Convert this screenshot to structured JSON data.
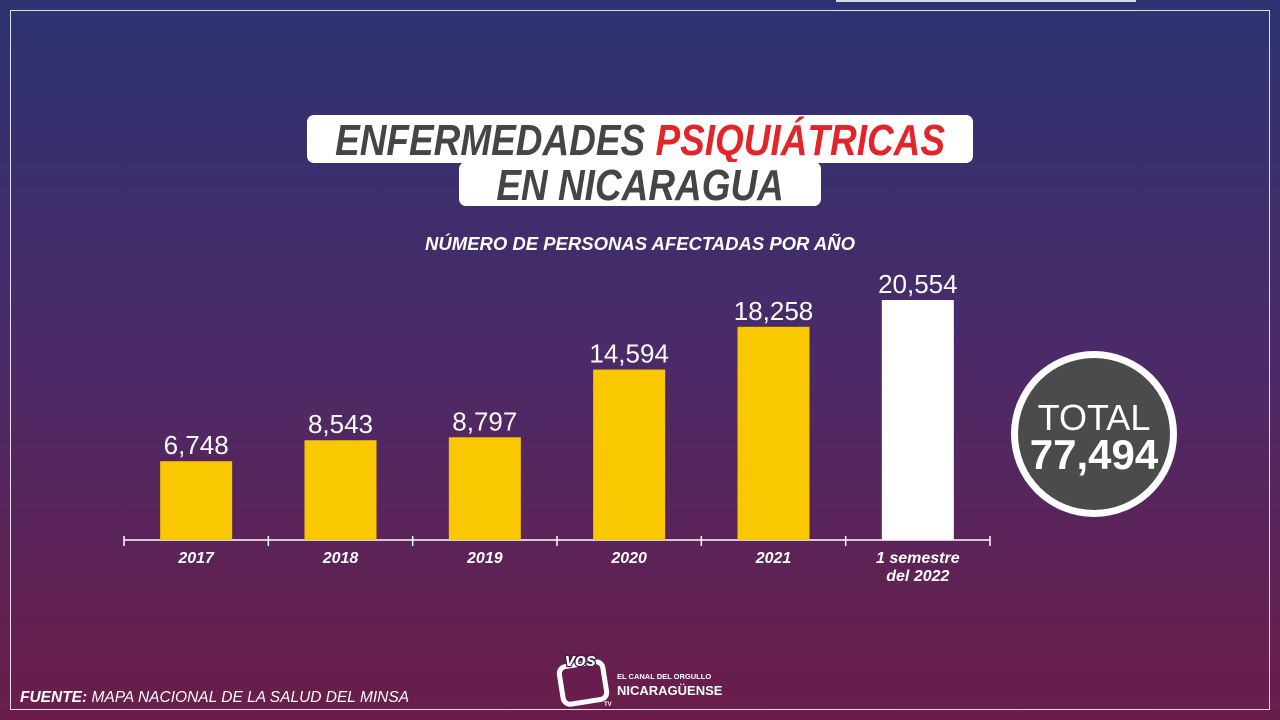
{
  "colors": {
    "background_top": "#2d3371",
    "background_middle": "#4b2a68",
    "background_bottom": "#6b1d49",
    "title_dark": "#454545",
    "title_red": "#e2252b",
    "total_circle": "#4b4b4b",
    "text": "#ffffff"
  },
  "chart_data": {
    "type": "bar",
    "title": {
      "line1_dark": "ENFERMEDADES",
      "line1_red": "PSIQUIÁTRICAS",
      "line2": "EN NICARAGUA"
    },
    "subtitle": "NÚMERO DE PERSONAS AFECTADAS POR AÑO",
    "categories": [
      "2017",
      "2018",
      "2019",
      "2020",
      "2021",
      "1 semestre del 2022"
    ],
    "values": [
      6748,
      8543,
      8797,
      14594,
      18258,
      20554
    ],
    "bar_colors": [
      "#f9c800",
      "#f9c800",
      "#f9c800",
      "#f9c800",
      "#f9c800",
      "#ffffff"
    ],
    "xlabel": "",
    "ylabel": "",
    "ylim": [
      0,
      20554
    ],
    "grid": false,
    "total": {
      "label": "TOTAL",
      "value": "77,494"
    }
  },
  "footer": {
    "source_label": "FUENTE:",
    "source_text": "MAPA NACIONAL DE LA SALUD DEL MINSA"
  },
  "logo": {
    "mark": "vos",
    "tv": "TV",
    "tagline_top": "EL CANAL DEL ORGULLO",
    "tagline_bottom": "NICARAGÜENSE"
  }
}
